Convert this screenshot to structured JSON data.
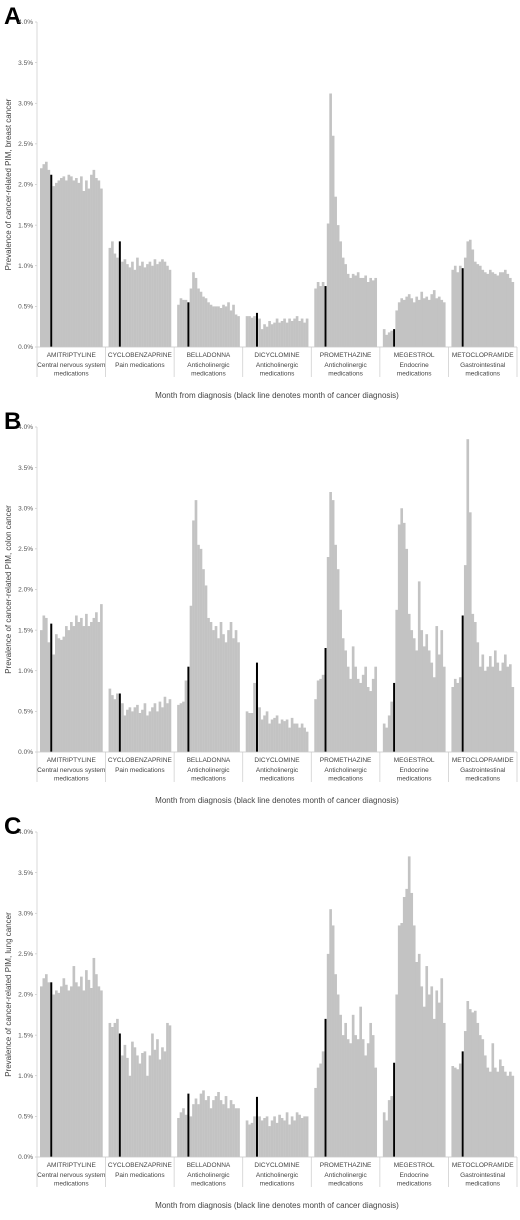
{
  "chart_data": [
    {
      "panel_label": "A",
      "type": "bar",
      "ylabel": "Prevalence of cancer-related PIM, breast cancer",
      "xlabel": "Month from diagnosis (black line denotes month of cancer diagnosis)",
      "ylim": [
        0,
        4.0
      ],
      "y_ticks": [
        "0.0%",
        "0.5%",
        "1.0%",
        "1.5%",
        "2.0%",
        "2.5%",
        "3.0%",
        "3.5%",
        "4.0%"
      ],
      "grid": false,
      "colors": {
        "bar": "#c3c3c3",
        "diagnosis_bar": "#000000"
      },
      "groups": [
        {
          "drug": "AMITRIPTYLINE",
          "class": "Central nervous system medications",
          "diagnosis_index": 4,
          "values": [
            2.2,
            2.25,
            2.28,
            2.18,
            2.12,
            1.98,
            2.02,
            2.05,
            2.08,
            2.1,
            2.05,
            2.12,
            2.1,
            2.05,
            2.08,
            2.02,
            2.1,
            1.92,
            2.05,
            1.95,
            2.12,
            2.18,
            2.08,
            2.05,
            1.95
          ]
        },
        {
          "drug": "CYCLOBENZAPRINE",
          "class": "Pain medications",
          "diagnosis_index": 4,
          "values": [
            1.22,
            1.3,
            1.15,
            1.1,
            1.3,
            1.05,
            1.08,
            1.02,
            0.98,
            1.05,
            0.95,
            1.1,
            1.0,
            1.05,
            0.98,
            1.02,
            1.05,
            1.0,
            1.08,
            1.02,
            1.05,
            1.08,
            1.05,
            1.0,
            0.95
          ]
        },
        {
          "drug": "BELLADONNA",
          "class": "Anticholinergic medications",
          "diagnosis_index": 4,
          "values": [
            0.52,
            0.6,
            0.58,
            0.58,
            0.55,
            0.72,
            0.92,
            0.85,
            0.72,
            0.68,
            0.62,
            0.6,
            0.55,
            0.52,
            0.5,
            0.5,
            0.5,
            0.48,
            0.52,
            0.5,
            0.55,
            0.45,
            0.52,
            0.4,
            0.38
          ]
        },
        {
          "drug": "DICYCLOMINE",
          "class": "Anticholinergic medications",
          "diagnosis_index": 4,
          "values": [
            0.38,
            0.38,
            0.36,
            0.38,
            0.42,
            0.35,
            0.22,
            0.28,
            0.25,
            0.32,
            0.28,
            0.3,
            0.35,
            0.3,
            0.32,
            0.35,
            0.3,
            0.35,
            0.32,
            0.35,
            0.38,
            0.32,
            0.35,
            0.3,
            0.35
          ]
        },
        {
          "drug": "PROMETHAZINE",
          "class": "Anticholinergic medications",
          "diagnosis_index": 4,
          "values": [
            0.72,
            0.8,
            0.75,
            0.8,
            0.75,
            1.52,
            3.12,
            2.6,
            1.85,
            1.5,
            1.3,
            1.1,
            1.02,
            0.9,
            0.85,
            0.9,
            0.88,
            0.92,
            0.85,
            0.85,
            0.88,
            0.8,
            0.85,
            0.82,
            0.85
          ]
        },
        {
          "drug": "MEGESTROL",
          "class": "Endocrine medications",
          "diagnosis_index": 4,
          "values": [
            0.22,
            0.15,
            0.18,
            0.2,
            0.22,
            0.45,
            0.55,
            0.6,
            0.58,
            0.62,
            0.65,
            0.6,
            0.55,
            0.62,
            0.58,
            0.68,
            0.6,
            0.62,
            0.58,
            0.65,
            0.7,
            0.6,
            0.62,
            0.58,
            0.55
          ]
        },
        {
          "drug": "METOCLOPRAMIDE",
          "class": "Gastrointestinal medications",
          "diagnosis_index": 4,
          "values": [
            0.95,
            1.0,
            0.92,
            1.0,
            0.97,
            1.1,
            1.3,
            1.32,
            1.2,
            1.05,
            1.02,
            1.0,
            0.95,
            0.92,
            0.9,
            0.95,
            0.92,
            0.9,
            0.88,
            0.92,
            0.92,
            0.95,
            0.9,
            0.85,
            0.8
          ]
        }
      ]
    },
    {
      "panel_label": "B",
      "type": "bar",
      "ylabel": "Prevalence of cancer-related PIM, colon cancer",
      "xlabel": "Month from diagnosis (black line denotes month of cancer diagnosis)",
      "ylim": [
        0,
        4.0
      ],
      "y_ticks": [
        "0.0%",
        "0.5%",
        "1.0%",
        "1.5%",
        "2.0%",
        "2.5%",
        "3.0%",
        "3.5%",
        "4.0%"
      ],
      "grid": false,
      "colors": {
        "bar": "#c3c3c3",
        "diagnosis_bar": "#000000"
      },
      "groups": [
        {
          "drug": "AMITRIPTYLINE",
          "class": "Central nervous system medications",
          "diagnosis_index": 4,
          "values": [
            1.5,
            1.68,
            1.65,
            1.35,
            1.58,
            1.2,
            1.45,
            1.4,
            1.38,
            1.42,
            1.55,
            1.5,
            1.6,
            1.55,
            1.68,
            1.6,
            1.65,
            1.55,
            1.7,
            1.55,
            1.6,
            1.65,
            1.72,
            1.6,
            1.82
          ]
        },
        {
          "drug": "CYCLOBENZAPRINE",
          "class": "Pain medications",
          "diagnosis_index": 4,
          "values": [
            0.78,
            0.7,
            0.65,
            0.72,
            0.72,
            0.6,
            0.45,
            0.52,
            0.55,
            0.5,
            0.55,
            0.58,
            0.48,
            0.52,
            0.6,
            0.45,
            0.5,
            0.55,
            0.6,
            0.5,
            0.62,
            0.55,
            0.68,
            0.6,
            0.65
          ]
        },
        {
          "drug": "BELLADONNA",
          "class": "Anticholinergic medications",
          "diagnosis_index": 4,
          "values": [
            0.58,
            0.6,
            0.62,
            0.88,
            1.05,
            1.8,
            2.85,
            3.1,
            2.55,
            2.5,
            2.25,
            2.05,
            1.65,
            1.6,
            1.5,
            1.55,
            1.4,
            1.6,
            1.45,
            1.35,
            1.5,
            1.6,
            1.4,
            1.5,
            1.35
          ]
        },
        {
          "drug": "DICYCLOMINE",
          "class": "Anticholinergic medications",
          "diagnosis_index": 4,
          "values": [
            0.5,
            0.48,
            0.48,
            0.85,
            1.1,
            0.55,
            0.4,
            0.45,
            0.5,
            0.35,
            0.4,
            0.42,
            0.45,
            0.35,
            0.4,
            0.38,
            0.4,
            0.3,
            0.42,
            0.35,
            0.35,
            0.3,
            0.35,
            0.3,
            0.25
          ]
        },
        {
          "drug": "PROMETHAZINE",
          "class": "Anticholinergic medications",
          "diagnosis_index": 4,
          "values": [
            0.65,
            0.88,
            0.9,
            0.95,
            1.28,
            2.4,
            3.2,
            3.1,
            2.55,
            2.25,
            1.75,
            1.4,
            1.25,
            1.05,
            0.9,
            1.3,
            1.05,
            0.9,
            0.85,
            0.95,
            1.05,
            0.8,
            0.75,
            0.9,
            1.05
          ]
        },
        {
          "drug": "MEGESTROL",
          "class": "Endocrine medications",
          "diagnosis_index": 4,
          "values": [
            0.35,
            0.3,
            0.45,
            0.62,
            0.85,
            1.75,
            2.8,
            3.0,
            2.82,
            2.5,
            1.7,
            1.5,
            1.4,
            1.25,
            2.1,
            1.5,
            1.3,
            1.45,
            1.25,
            1.1,
            0.92,
            1.55,
            1.2,
            1.5,
            1.05
          ]
        },
        {
          "drug": "METOCLOPRAMIDE",
          "class": "Gastrointestinal medications",
          "diagnosis_index": 4,
          "values": [
            0.8,
            0.9,
            0.85,
            0.92,
            1.68,
            2.3,
            3.85,
            2.95,
            1.7,
            1.6,
            1.35,
            1.05,
            1.2,
            1.0,
            1.05,
            1.18,
            1.05,
            1.25,
            1.1,
            1.0,
            1.1,
            1.2,
            1.05,
            1.08,
            0.8
          ]
        }
      ]
    },
    {
      "panel_label": "C",
      "type": "bar",
      "ylabel": "Prevalence of cancer-related PIM, lung cancer",
      "xlabel": "Month from diagnosis (black line denotes month of cancer diagnosis)",
      "ylim": [
        0,
        4.0
      ],
      "y_ticks": [
        "0.0%",
        "0.5%",
        "1.0%",
        "1.5%",
        "2.0%",
        "2.5%",
        "3.0%",
        "3.5%",
        "4.0%"
      ],
      "grid": false,
      "colors": {
        "bar": "#c3c3c3",
        "diagnosis_bar": "#000000"
      },
      "groups": [
        {
          "drug": "AMITRIPTYLINE",
          "class": "Central nervous system medications",
          "diagnosis_index": 4,
          "values": [
            2.1,
            2.2,
            2.25,
            2.15,
            2.15,
            2.0,
            2.05,
            2.02,
            2.1,
            2.2,
            2.12,
            2.05,
            2.1,
            2.35,
            2.15,
            2.1,
            2.22,
            2.05,
            2.3,
            2.18,
            2.08,
            2.45,
            2.25,
            2.1,
            2.05
          ]
        },
        {
          "drug": "CYCLOBENZAPRINE",
          "class": "Pain medications",
          "diagnosis_index": 4,
          "values": [
            1.65,
            1.6,
            1.65,
            1.7,
            1.52,
            1.25,
            1.38,
            1.22,
            1.0,
            1.42,
            1.35,
            1.25,
            1.15,
            1.28,
            1.3,
            1.0,
            1.25,
            1.52,
            1.32,
            1.45,
            1.2,
            1.35,
            1.3,
            1.65,
            1.62
          ]
        },
        {
          "drug": "BELLADONNA",
          "class": "Anticholinergic medications",
          "diagnosis_index": 4,
          "values": [
            0.48,
            0.55,
            0.6,
            0.52,
            0.78,
            0.5,
            0.65,
            0.72,
            0.65,
            0.78,
            0.82,
            0.7,
            0.75,
            0.6,
            0.7,
            0.75,
            0.8,
            0.7,
            0.65,
            0.75,
            0.6,
            0.7,
            0.65,
            0.6,
            0.6
          ]
        },
        {
          "drug": "DICYCLOMINE",
          "class": "Anticholinergic medications",
          "diagnosis_index": 4,
          "values": [
            0.45,
            0.4,
            0.42,
            0.5,
            0.74,
            0.5,
            0.45,
            0.48,
            0.5,
            0.38,
            0.45,
            0.5,
            0.42,
            0.52,
            0.48,
            0.45,
            0.55,
            0.4,
            0.5,
            0.45,
            0.55,
            0.52,
            0.48,
            0.5,
            0.5
          ]
        },
        {
          "drug": "PROMETHAZINE",
          "class": "Anticholinergic medications",
          "diagnosis_index": 4,
          "values": [
            0.85,
            1.1,
            1.15,
            1.3,
            1.7,
            2.5,
            3.05,
            2.85,
            2.25,
            2.0,
            1.75,
            1.5,
            1.65,
            1.45,
            1.4,
            1.75,
            1.5,
            1.45,
            1.85,
            1.45,
            1.25,
            1.4,
            1.65,
            1.5,
            1.1
          ]
        },
        {
          "drug": "MEGESTROL",
          "class": "Endocrine medications",
          "diagnosis_index": 4,
          "values": [
            0.55,
            0.45,
            0.7,
            0.75,
            1.16,
            2.0,
            2.85,
            2.88,
            3.2,
            3.3,
            3.7,
            3.25,
            2.85,
            2.4,
            2.5,
            2.1,
            1.85,
            2.35,
            2.0,
            2.1,
            1.7,
            2.05,
            1.9,
            2.2,
            1.65
          ]
        },
        {
          "drug": "METOCLOPRAMIDE",
          "class": "Gastrointestinal medications",
          "diagnosis_index": 4,
          "values": [
            1.12,
            1.1,
            1.08,
            1.15,
            1.3,
            1.55,
            1.92,
            1.82,
            1.78,
            1.8,
            1.65,
            1.5,
            1.45,
            1.25,
            1.1,
            1.05,
            1.4,
            1.1,
            1.05,
            1.2,
            1.12,
            1.05,
            1.0,
            1.05,
            1.0
          ]
        }
      ]
    }
  ]
}
